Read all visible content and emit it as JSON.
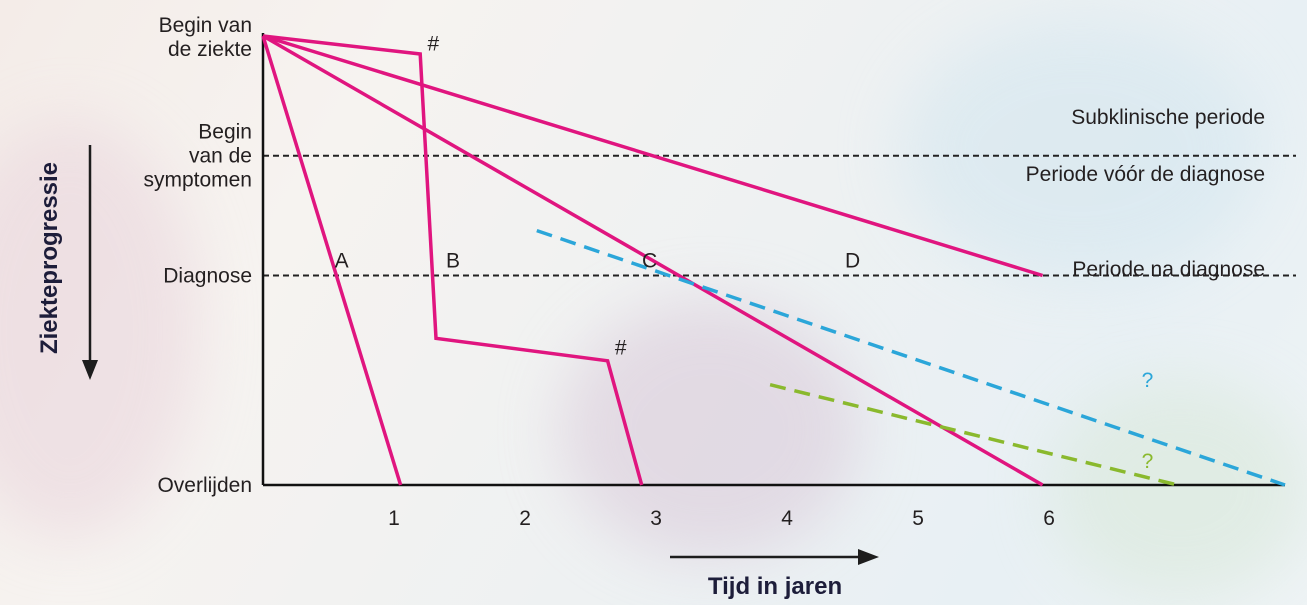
{
  "chart_data": {
    "type": "line",
    "title": "",
    "xlabel": "Tijd in jaren",
    "ylabel": "Ziekteprogressie",
    "x_ticks": [
      "1",
      "2",
      "3",
      "4",
      "5",
      "6"
    ],
    "y_ticks": [
      {
        "lines": [
          "Begin van",
          "de ziekte"
        ]
      },
      {
        "lines": [
          "Begin",
          "van de",
          "symptomen"
        ]
      },
      {
        "lines": [
          "Diagnose"
        ]
      },
      {
        "lines": [
          "Overlijden"
        ]
      }
    ],
    "xlim": [
      0,
      7.8
    ],
    "ylim": [
      0,
      3
    ],
    "y_level_values": {
      "Begin van de ziekte": 0,
      "Begin van de symptomen": 0.8,
      "Diagnose": 1.6,
      "Overlijden": 3
    },
    "regions": [
      "Subklinische periode",
      "Periode vóór de diagnose",
      "Periode na diagnose"
    ],
    "series": [
      {
        "name": "A",
        "color": "#e0157f",
        "dash": false,
        "points": [
          [
            0,
            0
          ],
          [
            1.05,
            3
          ]
        ]
      },
      {
        "name": "B",
        "color": "#e0157f",
        "dash": false,
        "points": [
          [
            0,
            0
          ],
          [
            1.2,
            0.12
          ],
          [
            1.32,
            2.02
          ],
          [
            2.63,
            2.17
          ],
          [
            2.89,
            3
          ]
        ]
      },
      {
        "name": "C",
        "color": "#e0157f",
        "dash": false,
        "points": [
          [
            0,
            0
          ],
          [
            5.95,
            3
          ]
        ]
      },
      {
        "name": "D",
        "color": "#e0157f",
        "dash": false,
        "points": [
          [
            0,
            0
          ],
          [
            5.95,
            1.6
          ]
        ]
      },
      {
        "name": "",
        "color": "#2ba6d9",
        "dash": true,
        "points": [
          [
            2.09,
            1.3
          ],
          [
            7.8,
            3
          ]
        ]
      },
      {
        "name": "",
        "color": "#8ab92d",
        "dash": true,
        "points": [
          [
            3.87,
            2.33
          ],
          [
            6.98,
            3
          ]
        ]
      }
    ],
    "annotations": [
      {
        "text": "A",
        "x": 0.6,
        "y": 1.5
      },
      {
        "text": "B",
        "x": 1.45,
        "y": 1.5
      },
      {
        "text": "C",
        "x": 2.95,
        "y": 1.5
      },
      {
        "text": "D",
        "x": 4.5,
        "y": 1.5
      },
      {
        "text": "#",
        "x": 1.3,
        "y": 0.05
      },
      {
        "text": "#",
        "x": 2.73,
        "y": 2.08
      },
      {
        "text": "?",
        "x": 6.75,
        "y": 2.84,
        "color": "#8ab92d"
      },
      {
        "text": "?",
        "x": 6.75,
        "y": 2.3,
        "color": "#2ba6d9"
      }
    ]
  }
}
